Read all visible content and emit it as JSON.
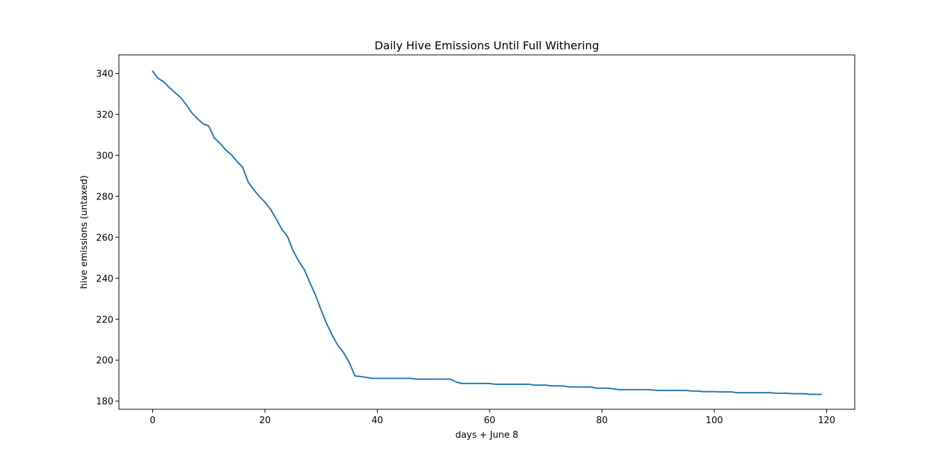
{
  "chart_data": {
    "type": "line",
    "title": "Daily Hive Emissions Until Full Withering",
    "xlabel": "days + June 8",
    "ylabel": "hive emissions (untaxed)",
    "xlim": [
      -6,
      125
    ],
    "ylim": [
      176,
      349
    ],
    "xticks": [
      0,
      20,
      40,
      60,
      80,
      100,
      120
    ],
    "yticks": [
      180,
      200,
      220,
      240,
      260,
      280,
      300,
      320,
      340
    ],
    "grid": false,
    "color": "#1f77b4",
    "series": [
      {
        "x": [
          0,
          1,
          2,
          3,
          4,
          5,
          6,
          7,
          8,
          9,
          10,
          11,
          12,
          13,
          14,
          15,
          16,
          17,
          18,
          19,
          20,
          21,
          22,
          23,
          24,
          25,
          26,
          27,
          28,
          29,
          30,
          31,
          32,
          33,
          34,
          35,
          36,
          37,
          38,
          39,
          40,
          41,
          42,
          43,
          44,
          45,
          46,
          47,
          48,
          49,
          50,
          51,
          52,
          53,
          54,
          55,
          56,
          57,
          58,
          59,
          60,
          61,
          62,
          63,
          64,
          65,
          66,
          67,
          68,
          69,
          70,
          71,
          72,
          73,
          74,
          75,
          76,
          77,
          78,
          79,
          80,
          81,
          82,
          83,
          84,
          85,
          86,
          87,
          88,
          89,
          90,
          91,
          92,
          93,
          94,
          95,
          96,
          97,
          98,
          99,
          100,
          101,
          102,
          103,
          104,
          105,
          106,
          107,
          108,
          109,
          110,
          111,
          112,
          113,
          114,
          115,
          116,
          117,
          118,
          119
        ],
        "values": [
          341,
          337.5,
          335.8,
          333,
          330.5,
          328.2,
          324.6,
          320.6,
          317.8,
          315.4,
          314.2,
          308.4,
          305.8,
          302.6,
          300.3,
          297,
          294.3,
          287,
          283.2,
          279.9,
          277.1,
          273.6,
          268.9,
          263.9,
          260.4,
          253.4,
          248.4,
          244.2,
          237.8,
          231.7,
          224.4,
          217.7,
          212,
          207.1,
          203.6,
          198.9,
          192.3,
          192,
          191.6,
          191.1,
          191.1,
          191.1,
          191.1,
          191.1,
          191.1,
          191.1,
          191.1,
          190.7,
          190.7,
          190.7,
          190.7,
          190.7,
          190.7,
          190.7,
          189.4,
          188.6,
          188.6,
          188.6,
          188.6,
          188.6,
          188.6,
          188.2,
          188.2,
          188.2,
          188.2,
          188.2,
          188.2,
          188.2,
          187.8,
          187.8,
          187.8,
          187.4,
          187.4,
          187.4,
          187,
          186.9,
          186.9,
          186.9,
          186.9,
          186.3,
          186.3,
          186.3,
          186,
          185.6,
          185.6,
          185.6,
          185.6,
          185.6,
          185.6,
          185.4,
          185.2,
          185.2,
          185.2,
          185.2,
          185.2,
          185.2,
          184.9,
          184.9,
          184.6,
          184.6,
          184.6,
          184.5,
          184.5,
          184.5,
          184.1,
          184.1,
          184.1,
          184.1,
          184.1,
          184.1,
          184.1,
          183.8,
          183.8,
          183.8,
          183.6,
          183.6,
          183.6,
          183.3,
          183.3,
          183.3
        ]
      }
    ]
  }
}
